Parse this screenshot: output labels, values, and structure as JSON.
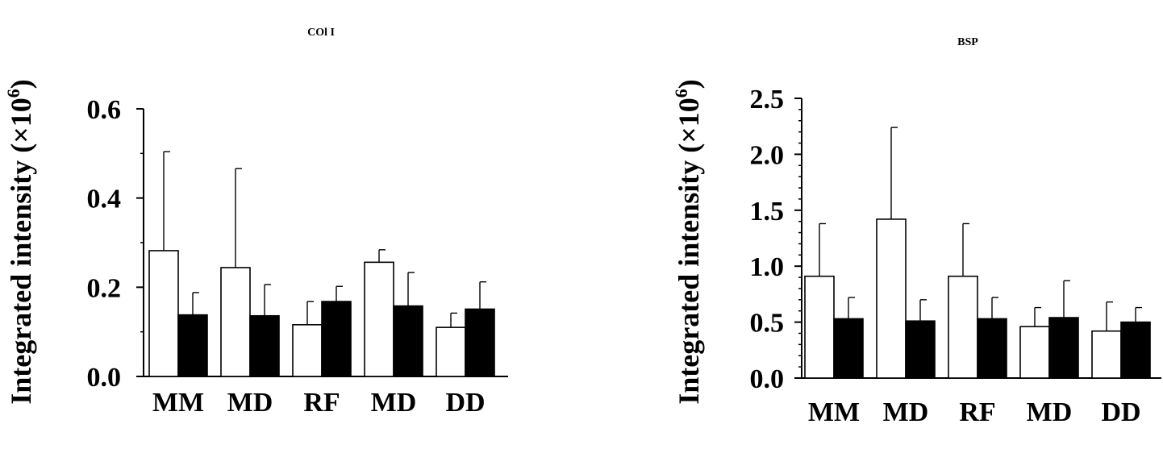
{
  "chart_data": [
    {
      "type": "bar",
      "title": "COl I",
      "ylabel": "Integrated intensity (×10",
      "ylabel_exp": "6",
      "ylabel_close": ")",
      "categories": [
        "MM",
        "MD",
        "RF",
        "MD",
        "DD"
      ],
      "ylim": [
        0,
        0.6
      ],
      "yticks": [
        0.0,
        0.2,
        0.4,
        0.6
      ],
      "ytick_labels": [
        "0.0",
        "0.2",
        "0.4",
        "0.6"
      ],
      "series": [
        {
          "name": "open",
          "color": "#ffffff",
          "values": [
            0.282,
            0.244,
            0.116,
            0.256,
            0.11
          ],
          "errors": [
            0.222,
            0.222,
            0.052,
            0.028,
            0.032
          ]
        },
        {
          "name": "filled",
          "color": "#000000",
          "values": [
            0.138,
            0.136,
            0.168,
            0.158,
            0.151
          ],
          "errors": [
            0.05,
            0.07,
            0.034,
            0.075,
            0.061
          ]
        }
      ]
    },
    {
      "type": "bar",
      "title": "BSP",
      "ylabel": "Integrated intensity (×10",
      "ylabel_exp": "6",
      "ylabel_close": ")",
      "categories": [
        "MM",
        "MD",
        "RF",
        "MD",
        "DD"
      ],
      "ylim": [
        0,
        2.5
      ],
      "yticks": [
        0.0,
        0.5,
        1.0,
        1.5,
        2.0,
        2.5
      ],
      "ytick_labels": [
        "0.0",
        "0.5",
        "1.0",
        "1.5",
        "2.0",
        "2.5"
      ],
      "series": [
        {
          "name": "open",
          "color": "#ffffff",
          "values": [
            0.91,
            1.42,
            0.91,
            0.46,
            0.42
          ],
          "errors": [
            0.47,
            0.82,
            0.47,
            0.17,
            0.26
          ]
        },
        {
          "name": "filled",
          "color": "#000000",
          "values": [
            0.53,
            0.51,
            0.53,
            0.54,
            0.5
          ],
          "errors": [
            0.19,
            0.19,
            0.19,
            0.33,
            0.13
          ]
        }
      ]
    }
  ]
}
